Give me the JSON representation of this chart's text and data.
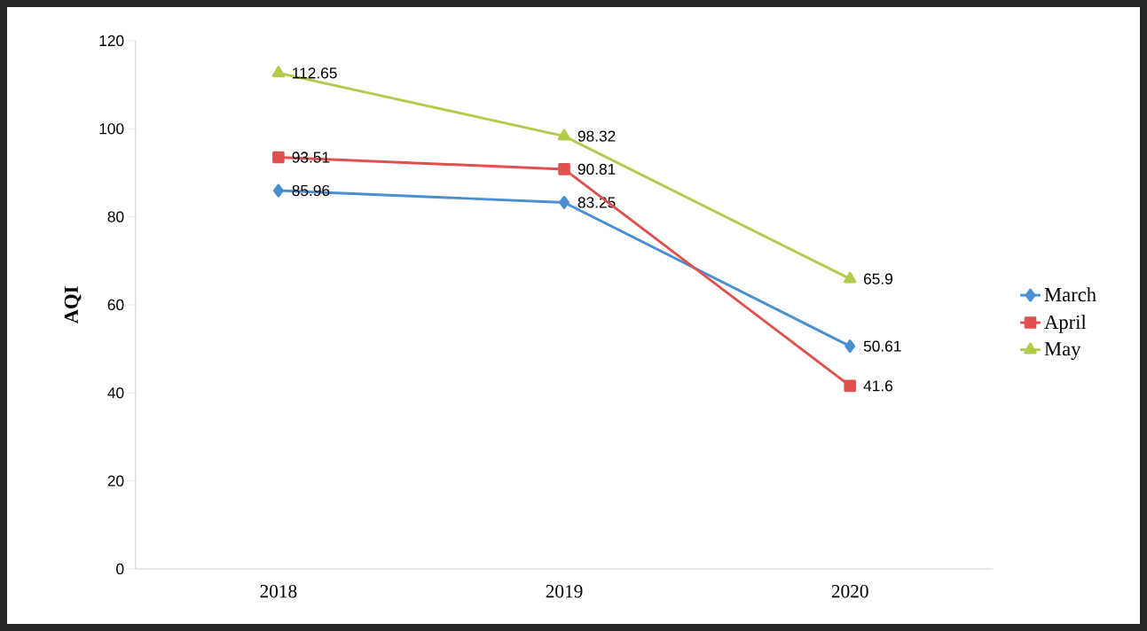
{
  "chart_data": {
    "type": "line",
    "ylabel": "AQI",
    "categories": [
      "2018",
      "2019",
      "2020"
    ],
    "series": [
      {
        "name": "March",
        "color": "#4a8fcf",
        "marker": "diamond",
        "values": [
          85.96,
          83.25,
          50.61
        ]
      },
      {
        "name": "April",
        "color": "#e0504e",
        "marker": "square",
        "values": [
          93.51,
          90.81,
          41.6
        ]
      },
      {
        "name": "May",
        "color": "#b3cb4a",
        "marker": "triangle",
        "values": [
          112.65,
          98.32,
          65.9
        ]
      }
    ],
    "ylim": [
      0,
      120
    ],
    "yticks": [
      0,
      20,
      40,
      60,
      80,
      100,
      120
    ],
    "grid": false,
    "legend": "right",
    "data_labels": true,
    "line_style": "solid"
  }
}
